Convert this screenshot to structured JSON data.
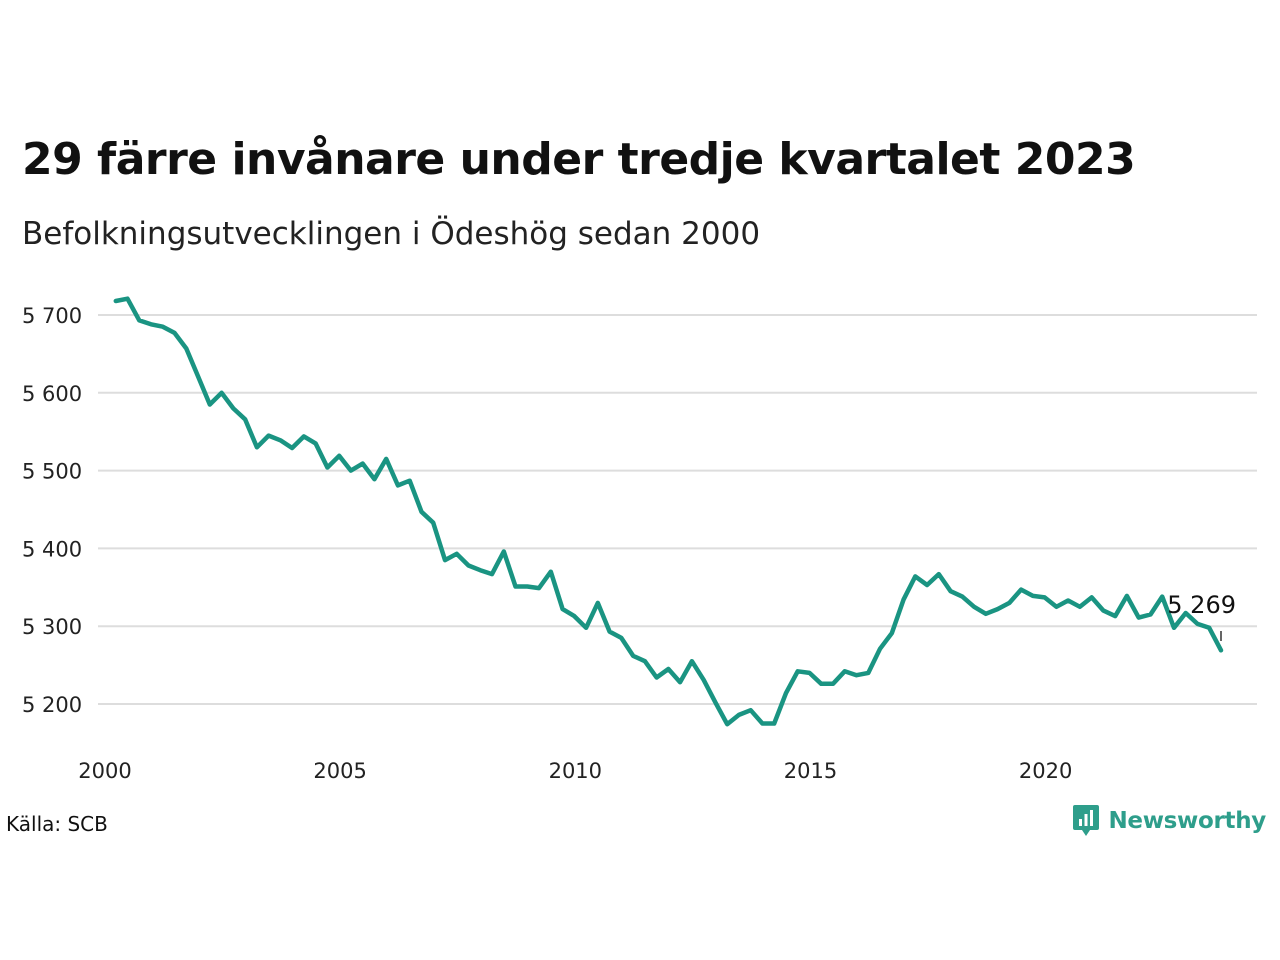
{
  "title": "29 färre invånare under tredje kvartalet 2023",
  "subtitle": "Befolkningsutvecklingen i Ödeshög sedan 2000",
  "source": "Källa: SCB",
  "brand": {
    "name": "Newsworthy",
    "icon": "newsworthy-logo-icon",
    "color": "#2e9e8b"
  },
  "chart_data": {
    "type": "line",
    "title": "29 färre invånare under tredje kvartalet 2023",
    "subtitle": "Befolkningsutvecklingen i Ödeshög sedan 2000",
    "xlabel": "",
    "ylabel": "",
    "xlim": [
      2000,
      2024.8
    ],
    "ylim": [
      5145,
      5735
    ],
    "x_ticks": [
      2000,
      2005,
      2010,
      2015,
      2020
    ],
    "x_tick_labels": [
      "2000",
      "2005",
      "2010",
      "2015",
      "2020"
    ],
    "y_ticks": [
      5200,
      5300,
      5400,
      5500,
      5600,
      5700
    ],
    "y_tick_labels": [
      "5 200",
      "5 300",
      "5 400",
      "5 500",
      "5 600",
      "5 700"
    ],
    "grid": true,
    "line_color": "#1a9482",
    "grid_color": "#dddddd",
    "end_label": "5 269",
    "series": [
      {
        "x": [
          2000.25,
          2000.5,
          2000.75,
          2001,
          2001.25,
          2001.5,
          2001.75,
          2002,
          2002.25,
          2002.5,
          2002.75,
          2003,
          2003.25,
          2003.5,
          2003.75,
          2004,
          2004.25,
          2004.5,
          2004.75,
          2005,
          2005.25,
          2005.5,
          2005.75,
          2006,
          2006.25,
          2006.5,
          2006.75,
          2007,
          2007.25,
          2007.5,
          2007.75,
          2008,
          2008.25,
          2008.5,
          2008.75,
          2009,
          2009.25,
          2009.5,
          2009.75,
          2010,
          2010.25,
          2010.5,
          2010.75,
          2011,
          2011.25,
          2011.5,
          2011.75,
          2012,
          2012.25,
          2012.5,
          2012.75,
          2013,
          2013.25,
          2013.5,
          2013.75,
          2014,
          2014.25,
          2014.5,
          2014.75,
          2015,
          2015.25,
          2015.5,
          2015.75,
          2016,
          2016.25,
          2016.5,
          2016.75,
          2017,
          2017.25,
          2017.5,
          2017.75,
          2018,
          2018.25,
          2018.5,
          2018.75,
          2019,
          2019.25,
          2019.5,
          2019.75,
          2020,
          2020.25,
          2020.5,
          2020.75,
          2021,
          2021.25,
          2021.5,
          2021.75,
          2022,
          2022.25,
          2022.5,
          2022.75,
          2023,
          2023.25,
          2023.5,
          2023.75
        ],
        "values": [
          5718,
          5721,
          5693,
          5688,
          5685,
          5677,
          5657,
          5621,
          5585,
          5600,
          5580,
          5566,
          5530,
          5545,
          5539,
          5529,
          5544,
          5535,
          5504,
          5519,
          5500,
          5509,
          5489,
          5515,
          5481,
          5487,
          5447,
          5433,
          5385,
          5393,
          5378,
          5372,
          5367,
          5396,
          5351,
          5351,
          5349,
          5370,
          5322,
          5313,
          5298,
          5330,
          5293,
          5285,
          5262,
          5255,
          5234,
          5245,
          5228,
          5255,
          5231,
          5202,
          5174,
          5186,
          5192,
          5175,
          5175,
          5214,
          5242,
          5240,
          5226,
          5226,
          5242,
          5237,
          5240,
          5271,
          5291,
          5334,
          5364,
          5353,
          5367,
          5345,
          5338,
          5325,
          5316,
          5322,
          5330,
          5347,
          5339,
          5337,
          5325,
          5333,
          5325,
          5337,
          5320,
          5313,
          5339,
          5311,
          5315,
          5338,
          5298,
          5317,
          5303,
          5298,
          5269
        ]
      }
    ]
  }
}
